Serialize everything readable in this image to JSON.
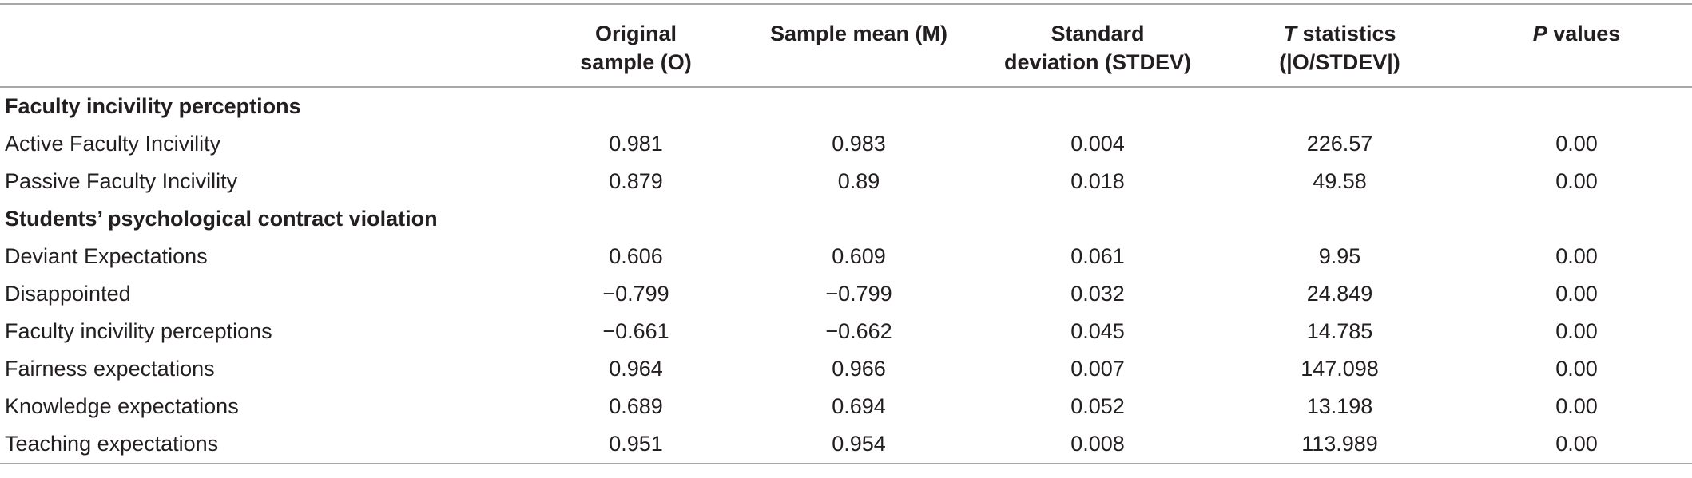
{
  "headers": {
    "col1": {
      "line1": "Original",
      "line2": "sample (O)"
    },
    "col2": {
      "line1": "Sample mean (M)",
      "line2": ""
    },
    "col3": {
      "line1": "Standard",
      "line2": "deviation (STDEV)"
    },
    "col4": {
      "italic": "T",
      "line1_rest": " statistics",
      "line2": "(|O/STDEV|)"
    },
    "col5": {
      "italic": "P",
      "line1_rest": " values"
    }
  },
  "sections": [
    {
      "title": "Faculty incivility perceptions",
      "rows": [
        {
          "label": "Active Faculty Incivility",
          "o": "0.981",
          "m": "0.983",
          "stdev": "0.004",
          "t": "226.57",
          "p": "0.00"
        },
        {
          "label": "Passive Faculty Incivility",
          "o": "0.879",
          "m": "0.89",
          "stdev": "0.018",
          "t": "49.58",
          "p": "0.00"
        }
      ]
    },
    {
      "title": "Students’ psychological contract violation",
      "rows": [
        {
          "label": "Deviant Expectations",
          "o": "0.606",
          "m": "0.609",
          "stdev": "0.061",
          "t": "9.95",
          "p": "0.00"
        },
        {
          "label": "Disappointed",
          "o": "−0.799",
          "m": "−0.799",
          "stdev": "0.032",
          "t": "24.849",
          "p": "0.00"
        },
        {
          "label": "Faculty incivility perceptions",
          "o": "−0.661",
          "m": "−0.662",
          "stdev": "0.045",
          "t": "14.785",
          "p": "0.00"
        },
        {
          "label": "Fairness expectations",
          "o": "0.964",
          "m": "0.966",
          "stdev": "0.007",
          "t": "147.098",
          "p": "0.00"
        },
        {
          "label": "Knowledge expectations",
          "o": "0.689",
          "m": "0.694",
          "stdev": "0.052",
          "t": "13.198",
          "p": "0.00"
        },
        {
          "label": "Teaching expectations",
          "o": "0.951",
          "m": "0.954",
          "stdev": "0.008",
          "t": "113.989",
          "p": "0.00"
        }
      ]
    }
  ]
}
